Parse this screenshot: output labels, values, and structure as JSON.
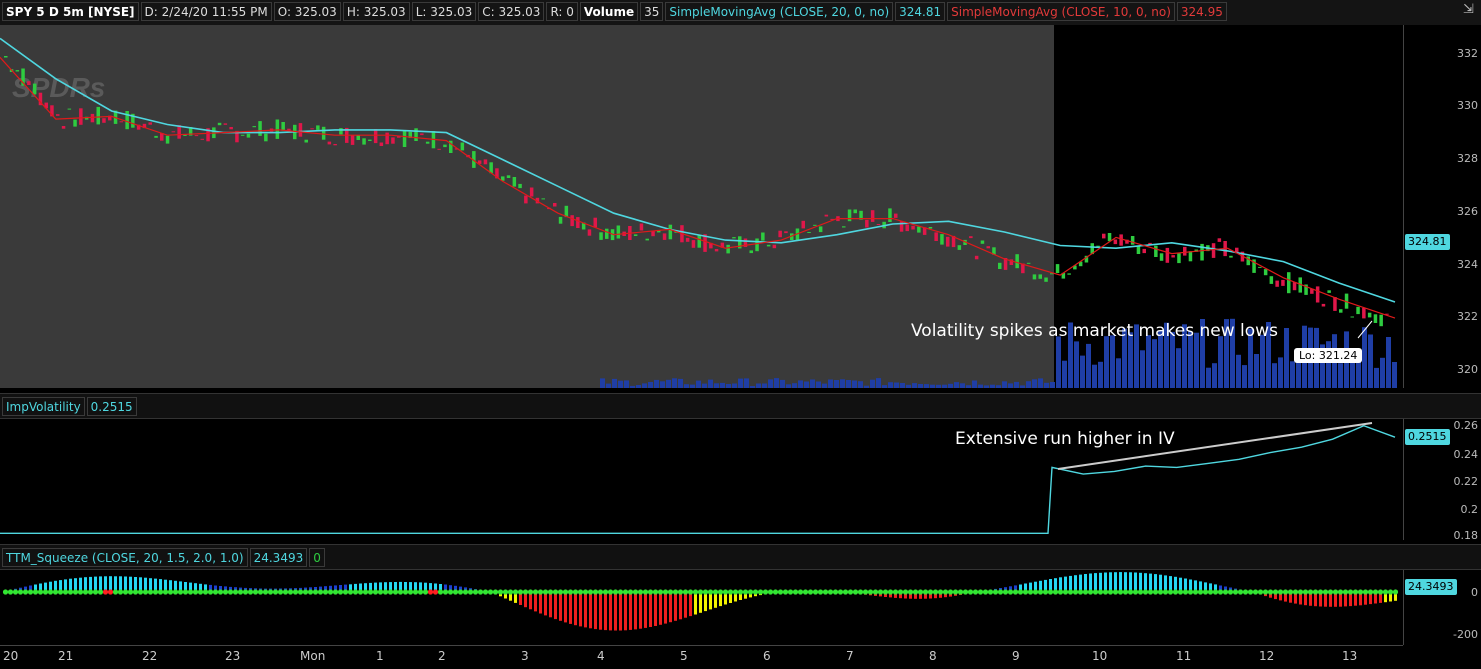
{
  "header": {
    "symbol": "SPY 5 D 5m [NYSE]",
    "date": "D: 2/24/20 11:55 PM",
    "open": "O: 325.03",
    "high": "H: 325.03",
    "low": "L: 325.03",
    "close": "C: 325.03",
    "range": "R: 0",
    "volume_label": "Volume",
    "volume_value": "35",
    "sma20_label": "SimpleMovingAvg (CLOSE, 20, 0, no)",
    "sma20_value": "324.81",
    "sma10_label": "SimpleMovingAvg (CLOSE, 10, 0, no)",
    "sma10_value": "324.95"
  },
  "price_axis": [
    "332",
    "330",
    "328",
    "326",
    "324",
    "322",
    "320"
  ],
  "price_tag": "324.81",
  "watermark": "SPDRs",
  "annotation_price": "Volatility spikes as market makes new lows",
  "lo_tag": "Lo: 321.24",
  "iv": {
    "label": "ImpVolatility",
    "value": "0.2515",
    "axis": [
      "0.26",
      "0.24",
      "0.22",
      "0.2",
      "0.18"
    ],
    "annotation": "Extensive run higher in IV"
  },
  "ttm": {
    "label": "TTM_Squeeze (CLOSE, 20, 1.5, 2.0, 1.0)",
    "value": "24.3493",
    "value2": "0",
    "axis": [
      "0",
      "-200"
    ]
  },
  "x_axis": [
    "20",
    "21",
    "22",
    "23",
    "Mon",
    "1",
    "2",
    "3",
    "4",
    "5",
    "6",
    "7",
    "8",
    "9",
    "10",
    "11",
    "12",
    "13"
  ],
  "colors": {
    "sma20": "#4fd7e0",
    "sma10": "#e01a1a",
    "up": "#2ecc40",
    "down": "#e0174a",
    "volume": "#1f3ea6"
  },
  "chart_data": {
    "type": "line",
    "series": [
      {
        "name": "SimpleMovingAvg (CLOSE, 20, 0, no)",
        "y": [
          332.5,
          331.0,
          329.8,
          329.3,
          329.0,
          329.0,
          329.1,
          329.1,
          329.0,
          328.0,
          327.0,
          326.0,
          325.4,
          325.0,
          324.9,
          325.2,
          325.6,
          325.7,
          325.3,
          324.8,
          324.7,
          324.9,
          324.6,
          324.2,
          323.4,
          322.7
        ]
      },
      {
        "name": "SimpleMovingAvg (CLOSE, 10, 0, no)",
        "y": [
          331.8,
          329.5,
          329.6,
          328.9,
          329.0,
          329.1,
          328.9,
          328.9,
          328.7,
          327.2,
          326.0,
          325.2,
          325.4,
          324.7,
          325.0,
          325.8,
          325.8,
          325.2,
          324.3,
          323.7,
          325.1,
          324.5,
          324.7,
          323.6,
          322.8,
          322.1
        ]
      }
    ],
    "y_range": [
      319.5,
      333
    ],
    "iv_values": [
      0.18,
      0.18,
      0.18,
      0.18,
      0.18,
      0.18,
      0.18,
      0.18,
      0.18,
      0.18,
      0.18,
      0.18,
      0.18,
      0.229,
      0.224,
      0.226,
      0.23,
      0.229,
      0.232,
      0.235,
      0.24,
      0.244,
      0.25,
      0.26,
      0.2515
    ],
    "iv_range": [
      0.175,
      0.265
    ]
  }
}
